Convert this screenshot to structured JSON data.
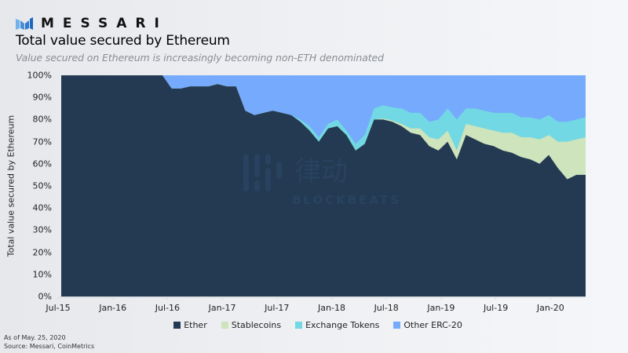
{
  "brand": {
    "name": "MESSARI",
    "logo_icon": "messari-logo-icon"
  },
  "header": {
    "title": "Total value secured by Ethereum",
    "subtitle": "Value secured on Ethereum is increasingly becoming non-ETH denominated"
  },
  "footer": {
    "as_of": "As of May. 25, 2020",
    "source": "Source: Messari, CoinMetrics"
  },
  "watermark": {
    "text": "BLOCKBEATS",
    "cjk": "律动"
  },
  "colors": {
    "ether": "#243a52",
    "stablecoins": "#cde4bd",
    "exchange_tokens": "#72d8e3",
    "other_erc20": "#76aafc"
  },
  "chart_data": {
    "type": "area",
    "stacked": true,
    "normalized": true,
    "title": "Total value secured by Ethereum",
    "subtitle": "Value secured on Ethereum is increasingly becoming non-ETH denominated",
    "xlabel": "",
    "ylabel": "Total value secured by Ethereum",
    "ylim": [
      0,
      100
    ],
    "yticks": [
      "0%",
      "10%",
      "20%",
      "30%",
      "40%",
      "50%",
      "60%",
      "70%",
      "80%",
      "90%",
      "100%"
    ],
    "xticks": [
      "Jul-15",
      "Jan-16",
      "Jul-16",
      "Jan-17",
      "Jul-17",
      "Jan-18",
      "Jul-18",
      "Jan-19",
      "Jul-19",
      "Jan-20"
    ],
    "grid": false,
    "legend_position": "bottom",
    "legend": [
      "Ether",
      "Stablecoins",
      "Exchange Tokens",
      "Other ERC-20"
    ],
    "x": [
      "Aug-15",
      "Sep-15",
      "Oct-15",
      "Nov-15",
      "Dec-15",
      "Jan-16",
      "Feb-16",
      "Mar-16",
      "Apr-16",
      "May-16",
      "Jun-16",
      "Jul-16",
      "Aug-16",
      "Sep-16",
      "Oct-16",
      "Nov-16",
      "Dec-16",
      "Jan-17",
      "Feb-17",
      "Mar-17",
      "Apr-17",
      "May-17",
      "Jun-17",
      "Jul-17",
      "Aug-17",
      "Sep-17",
      "Oct-17",
      "Nov-17",
      "Dec-17",
      "Jan-18",
      "Feb-18",
      "Mar-18",
      "Apr-18",
      "May-18",
      "Jun-18",
      "Jul-18",
      "Aug-18",
      "Sep-18",
      "Oct-18",
      "Nov-18",
      "Dec-18",
      "Jan-19",
      "Feb-19",
      "Mar-19",
      "Apr-19",
      "May-19",
      "Jun-19",
      "Jul-19",
      "Aug-19",
      "Sep-19",
      "Oct-19",
      "Nov-19",
      "Dec-19",
      "Jan-20",
      "Feb-20",
      "Mar-20",
      "Apr-20",
      "May-20"
    ],
    "series": [
      {
        "name": "Ether",
        "values": [
          100,
          100,
          100,
          100,
          100,
          100,
          100,
          100,
          100,
          100,
          100,
          100,
          94,
          94,
          95,
          95,
          95,
          96,
          95,
          95,
          84,
          82,
          83,
          84,
          83,
          82,
          79,
          75,
          70,
          76,
          77,
          73,
          66,
          69,
          80,
          80,
          79,
          77,
          74,
          73,
          68,
          66,
          70,
          62,
          73,
          71,
          69,
          68,
          66,
          65,
          63,
          62,
          60,
          64,
          58,
          53,
          55,
          55
        ]
      },
      {
        "name": "Stablecoins",
        "values": [
          0,
          0,
          0,
          0,
          0,
          0,
          0,
          0,
          0,
          0,
          0,
          0,
          0,
          0,
          0,
          0,
          0,
          0,
          0,
          0,
          0,
          0,
          0,
          0,
          0,
          0,
          0,
          0,
          0,
          0,
          0,
          0,
          0,
          0,
          0,
          0.5,
          0.5,
          1,
          2,
          3,
          4,
          5,
          5,
          4,
          5,
          6,
          7,
          7,
          8,
          9,
          9,
          10,
          11,
          9,
          12,
          17,
          16,
          17
        ]
      },
      {
        "name": "Exchange Tokens",
        "values": [
          0,
          0,
          0,
          0,
          0,
          0,
          0,
          0,
          0,
          0,
          0,
          0,
          0,
          0,
          0,
          0,
          0,
          0,
          0,
          0,
          0,
          0,
          0,
          0,
          0,
          0,
          1,
          2,
          2,
          2,
          3,
          2,
          3,
          4,
          5,
          6,
          6,
          7,
          7,
          7,
          7,
          9,
          10,
          14,
          7,
          8,
          8,
          8,
          9,
          9,
          9,
          9,
          9,
          9,
          9,
          9,
          9,
          9
        ]
      },
      {
        "name": "Other ERC-20",
        "values": [
          0,
          0,
          0,
          0,
          0,
          0,
          0,
          0,
          0,
          0,
          0,
          0,
          6,
          6,
          5,
          5,
          5,
          4,
          5,
          5,
          16,
          18,
          17,
          16,
          17,
          18,
          20,
          23,
          28,
          22,
          20,
          25,
          31,
          27,
          15,
          13.5,
          14.5,
          15,
          17,
          17,
          21,
          20,
          15,
          20,
          15,
          15,
          16,
          17,
          17,
          17,
          19,
          19,
          20,
          18,
          21,
          21,
          20,
          19
        ]
      }
    ]
  }
}
